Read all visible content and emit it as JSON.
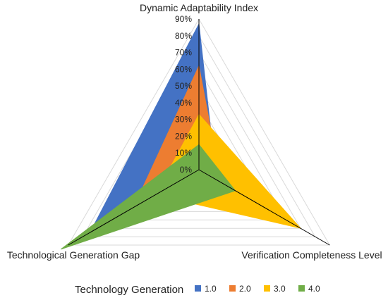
{
  "chart_data": {
    "type": "radar",
    "axes": [
      "Dynamic Adaptability Index",
      "Verification Completeness Level",
      "Technological Generation Gap"
    ],
    "radial_ticks": [
      "0%",
      "10%",
      "20%",
      "30%",
      "40%",
      "50%",
      "60%",
      "70%",
      "80%",
      "90%"
    ],
    "rlim": [
      0,
      0.9
    ],
    "grid": true,
    "legend_title": "Technology Generation",
    "legend_position": "bottom",
    "series": [
      {
        "name": "1.0",
        "color": "#4472C4",
        "values": [
          0.87,
          0.12,
          0.75
        ]
      },
      {
        "name": "2.0",
        "color": "#ED7D31",
        "values": [
          0.62,
          0.15,
          0.45
        ]
      },
      {
        "name": "3.0",
        "color": "#FFC000",
        "values": [
          0.33,
          0.7,
          0.3
        ]
      },
      {
        "name": "4.0",
        "color": "#70AD47",
        "values": [
          0.15,
          0.25,
          0.95
        ]
      }
    ]
  }
}
